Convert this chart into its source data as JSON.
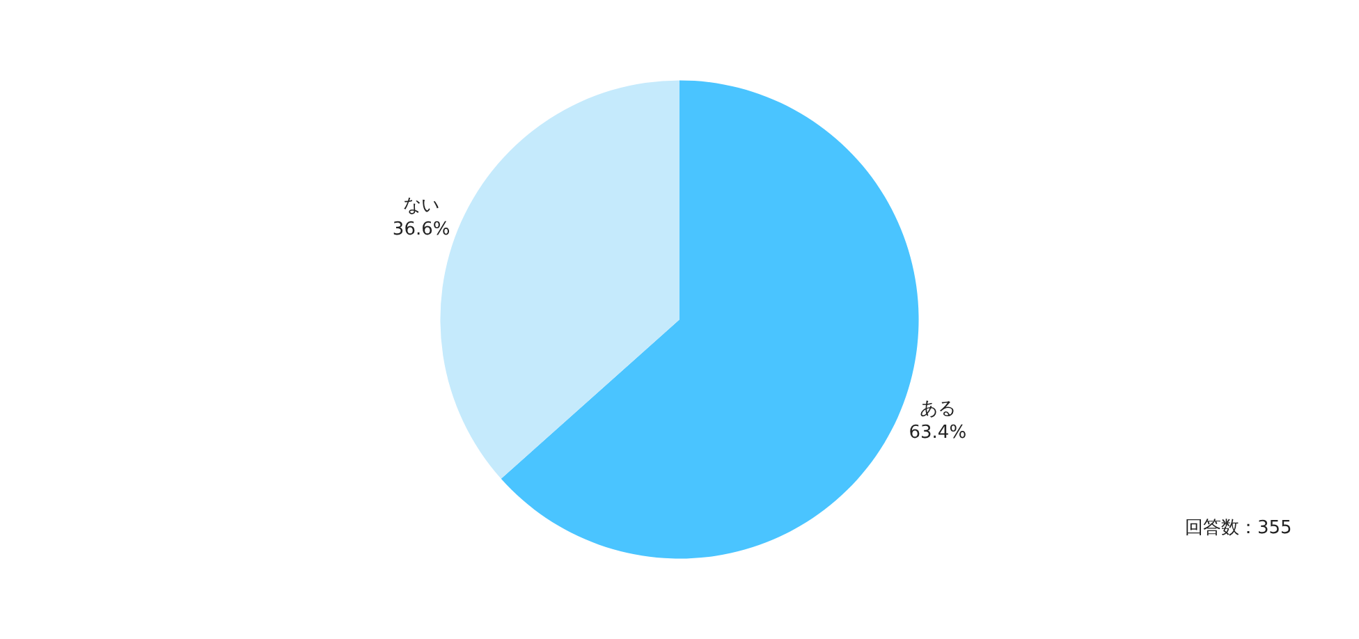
{
  "chart_data": {
    "type": "pie",
    "categories": [
      "ある",
      "ない"
    ],
    "values": [
      63.4,
      36.6
    ],
    "colors": [
      "#4ac4ff",
      "#c5eafc"
    ],
    "value_labels": [
      "63.4%",
      "36.6%"
    ],
    "legend": false,
    "annotations": [
      "回答数：355"
    ]
  }
}
